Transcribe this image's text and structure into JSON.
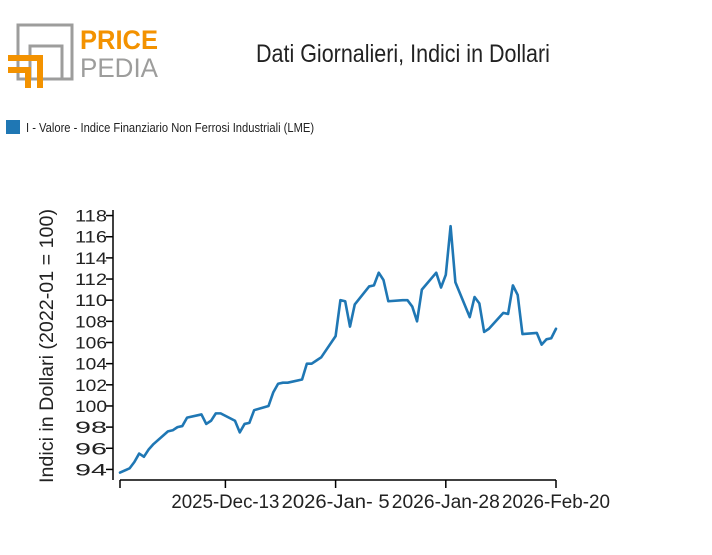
{
  "logo": {
    "word_top": "PRICE",
    "word_bottom": "PEDIA",
    "colors": {
      "orange": "#f39200",
      "gray": "#9d9d9c"
    }
  },
  "chart_data": {
    "type": "line",
    "title": "Dati Giornalieri, Indici in Dollari",
    "ylabel": "Indici in Dollari (2022-01 = 100)",
    "xlabel": "",
    "ylim": [
      93,
      119
    ],
    "yticks": [
      94,
      96,
      98,
      100,
      102,
      104,
      106,
      108,
      110,
      112,
      114,
      116,
      118
    ],
    "x_range": [
      "2025-11-21",
      "2026-02-20"
    ],
    "xticks": [
      {
        "date": "2025-12-13",
        "label": "2025-Dec-13"
      },
      {
        "date": "2026-01-05",
        "label": "2026-Jan- 5"
      },
      {
        "date": "2026-01-28",
        "label": "2026-Jan-28"
      },
      {
        "date": "2026-02-20",
        "label": "2026-Feb-20"
      }
    ],
    "grid": false,
    "legend": "top-left",
    "series": [
      {
        "name": "I - Valore - Indice Finanziario Non Ferrosi Industriali (LME)",
        "color": "#1f77b4",
        "x": [
          "2025-11-21",
          "2025-11-23",
          "2025-11-24",
          "2025-11-25",
          "2025-11-26",
          "2025-11-27",
          "2025-11-28",
          "2025-12-01",
          "2025-12-02",
          "2025-12-03",
          "2025-12-04",
          "2025-12-05",
          "2025-12-08",
          "2025-12-09",
          "2025-12-10",
          "2025-12-11",
          "2025-12-12",
          "2025-12-15",
          "2025-12-16",
          "2025-12-17",
          "2025-12-18",
          "2025-12-19",
          "2025-12-22",
          "2025-12-23",
          "2025-12-24",
          "2025-12-25",
          "2025-12-26",
          "2025-12-29",
          "2025-12-30",
          "2025-12-31",
          "2026-01-01",
          "2026-01-02",
          "2026-01-05",
          "2026-01-06",
          "2026-01-07",
          "2026-01-08",
          "2026-01-09",
          "2026-01-12",
          "2026-01-13",
          "2026-01-14",
          "2026-01-15",
          "2026-01-16",
          "2026-01-19",
          "2026-01-20",
          "2026-01-21",
          "2026-01-22",
          "2026-01-23",
          "2026-01-26",
          "2026-01-27",
          "2026-01-28",
          "2026-01-29",
          "2026-01-30",
          "2026-02-02",
          "2026-02-03",
          "2026-02-04",
          "2026-02-05",
          "2026-02-06",
          "2026-02-09",
          "2026-02-10",
          "2026-02-11",
          "2026-02-12",
          "2026-02-13",
          "2026-02-16",
          "2026-02-17",
          "2026-02-18",
          "2026-02-19",
          "2026-02-20"
        ],
        "values": [
          93.7,
          94.1,
          94.7,
          95.5,
          95.2,
          95.9,
          96.4,
          97.6,
          97.7,
          98.0,
          98.1,
          98.9,
          99.2,
          98.3,
          98.6,
          99.3,
          99.3,
          98.6,
          97.5,
          98.3,
          98.4,
          99.6,
          100.0,
          101.3,
          102.1,
          102.2,
          102.2,
          102.5,
          104.0,
          104.0,
          104.3,
          104.6,
          106.6,
          110.0,
          109.9,
          107.5,
          109.6,
          111.3,
          111.4,
          112.6,
          111.9,
          109.9,
          110.0,
          110.0,
          109.4,
          108.0,
          111.0,
          112.6,
          111.2,
          112.4,
          117.0,
          111.7,
          108.4,
          110.3,
          109.7,
          107.0,
          107.3,
          108.8,
          108.7,
          111.4,
          110.5,
          106.8,
          106.9,
          105.8,
          106.3,
          106.4,
          107.3
        ]
      }
    ]
  }
}
